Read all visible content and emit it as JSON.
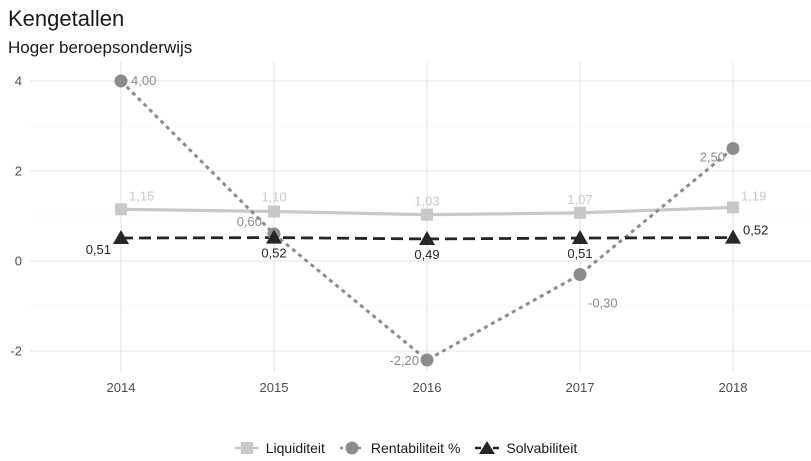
{
  "header": {
    "title": "Kengetallen",
    "subtitle": "Hoger beroepsonderwijs"
  },
  "chart_data": {
    "type": "line",
    "title": "Kengetallen",
    "subtitle": "Hoger beroepsonderwijs",
    "xlabel": "",
    "ylabel": "",
    "categories": [
      "2014",
      "2015",
      "2016",
      "2017",
      "2018"
    ],
    "yticks": [
      "-2",
      "0",
      "2",
      "4"
    ],
    "ylim": [
      -2.5,
      4.3
    ],
    "grid": true,
    "legend_position": "bottom",
    "series": [
      {
        "name": "Liquiditeit",
        "values": [
          1.15,
          1.1,
          1.03,
          1.07,
          1.19
        ],
        "labels": [
          "1,15",
          "1,10",
          "1,03",
          "1,07",
          "1,19"
        ],
        "color": "#c8c8c8",
        "marker": "square",
        "line": "solid"
      },
      {
        "name": "Rentabiliteit %",
        "values": [
          4.0,
          0.6,
          -2.2,
          -0.3,
          2.5
        ],
        "labels": [
          "4,00",
          "0,60",
          "-2,20",
          "-0,30",
          "2,50"
        ],
        "color": "#8c8c8c",
        "marker": "circle",
        "line": "dotted"
      },
      {
        "name": "Solvabiliteit",
        "values": [
          0.51,
          0.52,
          0.49,
          0.51,
          0.52
        ],
        "labels": [
          "0,51",
          "0,52",
          "0,49",
          "0,51",
          "0,52"
        ],
        "color": "#262626",
        "marker": "triangle",
        "line": "dashed"
      }
    ]
  }
}
